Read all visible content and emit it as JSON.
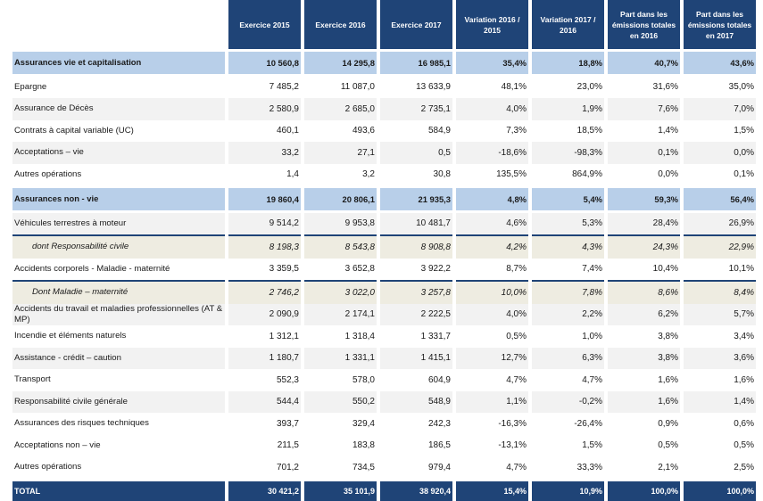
{
  "headers": [
    "",
    "Exercice 2015",
    "Exercice 2016",
    "Exercice 2017",
    "Variation  2016 / 2015",
    "Variation  2017 / 2016",
    "Part dans les émissions totales en 2016",
    "Part dans les émissions totales en 2017"
  ],
  "rows": [
    {
      "type": "section",
      "label": "Assurances vie et capitalisation",
      "values": [
        "10 560,8",
        "14 295,8",
        "16 985,1",
        "35,4%",
        "18,8%",
        "40,7%",
        "43,6%"
      ]
    },
    {
      "type": "odd",
      "label": "Epargne",
      "values": [
        "7 485,2",
        "11 087,0",
        "13 633,9",
        "48,1%",
        "23,0%",
        "31,6%",
        "35,0%"
      ]
    },
    {
      "type": "even",
      "label": "Assurance de Décès",
      "values": [
        "2 580,9",
        "2 685,0",
        "2 735,1",
        "4,0%",
        "1,9%",
        "7,6%",
        "7,0%"
      ]
    },
    {
      "type": "odd",
      "label": "Contrats à capital variable (UC)",
      "values": [
        "460,1",
        "493,6",
        "584,9",
        "7,3%",
        "18,5%",
        "1,4%",
        "1,5%"
      ]
    },
    {
      "type": "even",
      "label": "Acceptations – vie",
      "values": [
        "33,2",
        "27,1",
        "0,5",
        "-18,6%",
        "-98,3%",
        "0,1%",
        "0,0%"
      ]
    },
    {
      "type": "odd",
      "label": "Autres opérations",
      "values": [
        "1,4",
        "3,2",
        "30,8",
        "135,5%",
        "864,9%",
        "0,0%",
        "0,1%"
      ]
    },
    {
      "type": "section",
      "label": "Assurances non - vie",
      "values": [
        "19 860,4",
        "20 806,1",
        "21 935,3",
        "4,8%",
        "5,4%",
        "59,3%",
        "56,4%"
      ]
    },
    {
      "type": "even",
      "label": "Véhicules terrestres à moteur",
      "values": [
        "9 514,2",
        "9 953,8",
        "10 481,7",
        "4,6%",
        "5,3%",
        "28,4%",
        "26,9%"
      ]
    },
    {
      "type": "sub",
      "label": "dont Responsabilité civile",
      "values": [
        "8 198,3",
        "8 543,8",
        "8 908,8",
        "4,2%",
        "4,3%",
        "24,3%",
        "22,9%"
      ]
    },
    {
      "type": "odd",
      "label": "Accidents corporels - Maladie - maternité",
      "values": [
        "3 359,5",
        "3 652,8",
        "3 922,2",
        "8,7%",
        "7,4%",
        "10,4%",
        "10,1%"
      ]
    },
    {
      "type": "sub",
      "label": "Dont Maladie – maternité",
      "values": [
        "2 746,2",
        "3 022,0",
        "3 257,8",
        "10,0%",
        "7,8%",
        "8,6%",
        "8,4%"
      ]
    },
    {
      "type": "even",
      "label": "Accidents du travail et maladies professionnelles (AT & MP)",
      "values": [
        "2 090,9",
        "2 174,1",
        "2 222,5",
        "4,0%",
        "2,2%",
        "6,2%",
        "5,7%"
      ]
    },
    {
      "type": "odd",
      "label": "Incendie et éléments naturels",
      "values": [
        "1 312,1",
        "1 318,4",
        "1 331,7",
        "0,5%",
        "1,0%",
        "3,8%",
        "3,4%"
      ]
    },
    {
      "type": "even",
      "label": "Assistance - crédit – caution",
      "values": [
        "1 180,7",
        "1 331,1",
        "1 415,1",
        "12,7%",
        "6,3%",
        "3,8%",
        "3,6%"
      ]
    },
    {
      "type": "odd",
      "label": "Transport",
      "values": [
        "552,3",
        "578,0",
        "604,9",
        "4,7%",
        "4,7%",
        "1,6%",
        "1,6%"
      ]
    },
    {
      "type": "even",
      "label": "Responsabilité civile générale",
      "values": [
        "544,4",
        "550,2",
        "548,9",
        "1,1%",
        "-0,2%",
        "1,6%",
        "1,4%"
      ]
    },
    {
      "type": "odd",
      "label": "Assurances des risques techniques",
      "values": [
        "393,7",
        "329,4",
        "242,3",
        "-16,3%",
        "-26,4%",
        "0,9%",
        "0,6%"
      ]
    },
    {
      "type": "odd",
      "label": "Acceptations non – vie",
      "values": [
        "211,5",
        "183,8",
        "186,5",
        "-13,1%",
        "1,5%",
        "0,5%",
        "0,5%"
      ]
    },
    {
      "type": "odd",
      "label": "Autres opérations",
      "values": [
        "701,2",
        "734,5",
        "979,4",
        "4,7%",
        "33,3%",
        "2,1%",
        "2,5%"
      ]
    },
    {
      "type": "total",
      "label": "TOTAL",
      "values": [
        "30 421,2",
        "35 101,9",
        "38 920,4",
        "15,4%",
        "10,9%",
        "100,0%",
        "100,0%"
      ]
    }
  ]
}
